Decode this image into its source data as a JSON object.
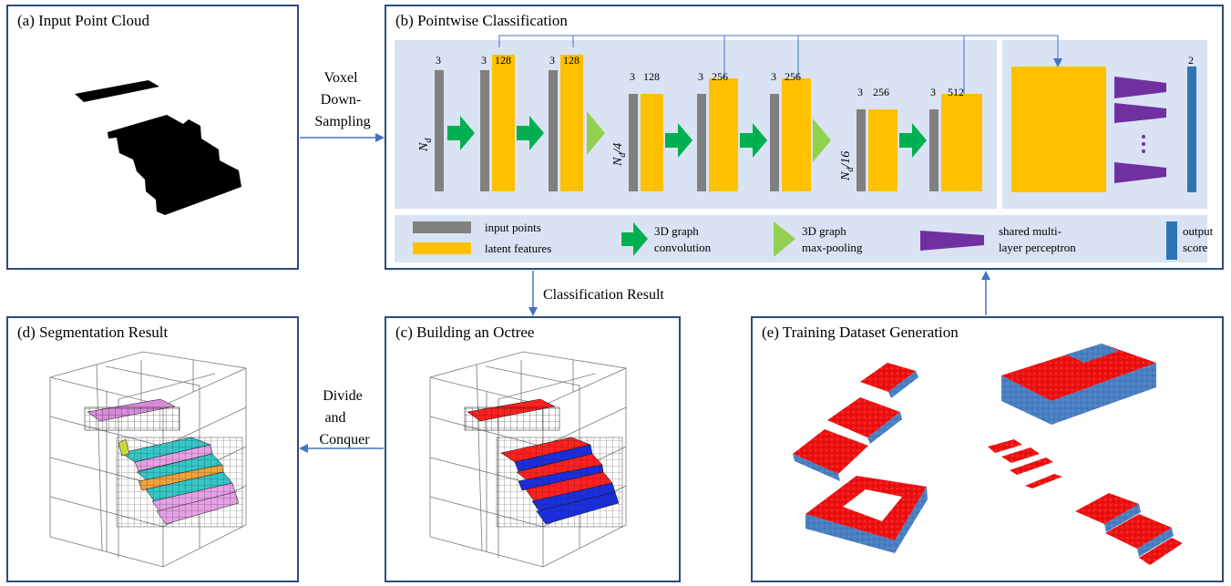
{
  "panels": {
    "a": {
      "title": "(a) Input Point Cloud"
    },
    "b": {
      "title": "(b) Pointwise Classification"
    },
    "c": {
      "title": "(c) Building an Octree"
    },
    "d": {
      "title": "(d) Segmentation Result"
    },
    "e": {
      "title": "(e) Training Dataset Generation"
    }
  },
  "arrows": {
    "a_to_b": [
      "Voxel",
      "Down-",
      "Sampling"
    ],
    "b_to_c": "Classification Result",
    "c_to_d": [
      "Divide",
      "and",
      "Conquer"
    ]
  },
  "network": {
    "dims_first": "3",
    "dims": [
      [
        "3",
        "128"
      ],
      [
        "3",
        "128"
      ],
      [
        "3",
        "128"
      ],
      [
        "3",
        "256"
      ],
      [
        "3",
        "256"
      ],
      [
        "3",
        "256"
      ],
      [
        "3",
        "512"
      ]
    ],
    "output_dim": "2",
    "nd_labels": {
      "n": "N",
      "sub": "d",
      "full": "N_d",
      "quarter": "/4",
      "sixteenth": "/16"
    }
  },
  "legend": {
    "input_points": "input points",
    "latent_features": "latent features",
    "graph_conv": [
      "3D graph",
      "convolution"
    ],
    "graph_pool": [
      "3D graph",
      "max-pooling"
    ],
    "mlp": [
      "shared multi-",
      "layer perceptron"
    ],
    "output": [
      "output",
      "score"
    ]
  },
  "colors": {
    "panel_border": "#2f4b7c",
    "net_bg": "#dae3f3",
    "input_points": "#808080",
    "latent_features": "#ffc000",
    "graph_conv": "#00b050",
    "graph_pool": "#92d050",
    "mlp": "#7030a0",
    "output": "#2e75b6",
    "arrow": "#4472c4",
    "label_red": "#ff0000",
    "label_blue": "#4a7fc1"
  }
}
